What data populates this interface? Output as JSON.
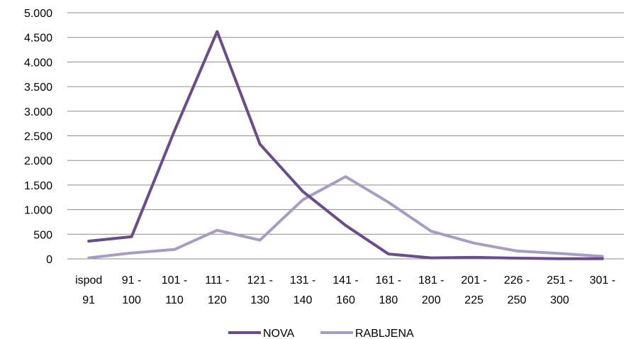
{
  "chart_data": {
    "type": "line",
    "title": "",
    "xlabel": "",
    "ylabel": "",
    "ylim": [
      0,
      5000
    ],
    "y_ticks": [
      0,
      500,
      1000,
      1500,
      2000,
      2500,
      3000,
      3500,
      4000,
      4500,
      5000
    ],
    "y_tick_labels": [
      "0",
      "500",
      "1.000",
      "1.500",
      "2.000",
      "2.500",
      "3.000",
      "3.500",
      "4.000",
      "4.500",
      "5.000"
    ],
    "grid": true,
    "legend_position": "bottom",
    "categories": [
      [
        "ispod",
        "91"
      ],
      [
        "91 -",
        "100"
      ],
      [
        "101 -",
        "110"
      ],
      [
        "111 -",
        "120"
      ],
      [
        "121 -",
        "130"
      ],
      [
        "131 -",
        "140"
      ],
      [
        "141 -",
        "160"
      ],
      [
        "161 -",
        "180"
      ],
      [
        "181 -",
        "200"
      ],
      [
        "201 -",
        "225"
      ],
      [
        "226 -",
        "250"
      ],
      [
        "251 -",
        "300"
      ],
      [
        "301 -",
        ""
      ]
    ],
    "series": [
      {
        "name": "NOVA",
        "color": "#6a4c8c",
        "values": [
          360,
          450,
          2600,
          4620,
          2330,
          1370,
          680,
          100,
          20,
          30,
          15,
          5,
          5
        ]
      },
      {
        "name": "RABLJENA",
        "color": "#a89cc4",
        "values": [
          20,
          120,
          190,
          580,
          380,
          1200,
          1670,
          1150,
          560,
          320,
          160,
          110,
          50
        ]
      }
    ]
  }
}
